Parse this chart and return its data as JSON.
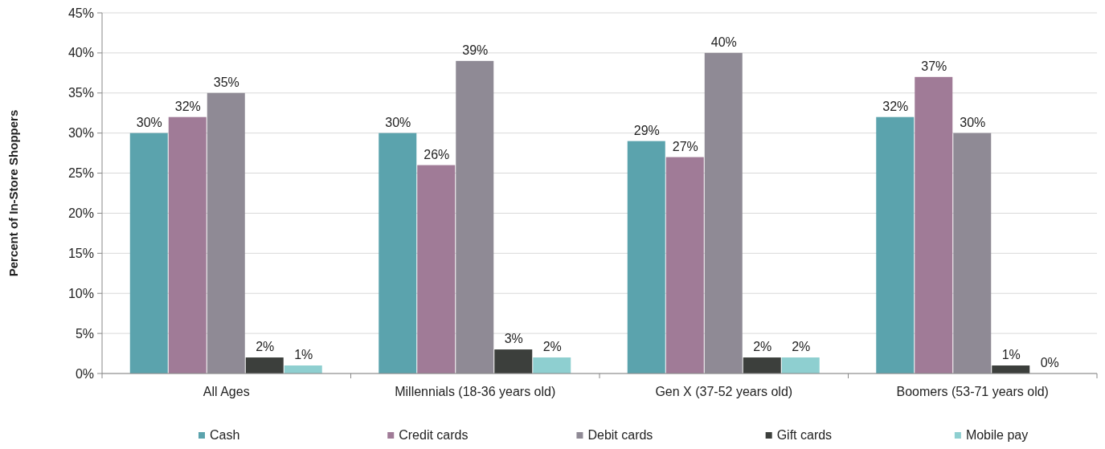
{
  "chart_data": {
    "type": "bar",
    "ylabel": "Percent of In-Store Shoppers",
    "categories": [
      "All Ages",
      "Millennials (18-36 years old)",
      "Gen X (37-52 years old)",
      "Boomers (53-71 years old)"
    ],
    "series": [
      {
        "name": "Cash",
        "color": "#5ba3ad",
        "values": [
          30,
          30,
          29,
          32
        ]
      },
      {
        "name": "Credit cards",
        "color": "#a07b97",
        "values": [
          32,
          26,
          27,
          37
        ]
      },
      {
        "name": "Debit cards",
        "color": "#8f8a95",
        "values": [
          35,
          39,
          40,
          30
        ]
      },
      {
        "name": "Gift cards",
        "color": "#3c3f3c",
        "values": [
          2,
          3,
          2,
          1
        ]
      },
      {
        "name": "Mobile pay",
        "color": "#8ecfd0",
        "values": [
          1,
          2,
          2,
          0
        ]
      }
    ],
    "ylim": [
      0,
      45
    ],
    "yticks": [
      {
        "value": 0,
        "label": "0%"
      },
      {
        "value": 5,
        "label": "5%"
      },
      {
        "value": 10,
        "label": "10%"
      },
      {
        "value": 15,
        "label": "15%"
      },
      {
        "value": 20,
        "label": "20%"
      },
      {
        "value": 25,
        "label": "25%"
      },
      {
        "value": 30,
        "label": "30%"
      },
      {
        "value": 35,
        "label": "35%"
      },
      {
        "value": 40,
        "label": "40%"
      },
      {
        "value": 45,
        "label": "45%"
      }
    ],
    "value_labels": [
      [
        "30%",
        "30%",
        "29%",
        "32%"
      ],
      [
        "32%",
        "26%",
        "27%",
        "37%"
      ],
      [
        "35%",
        "39%",
        "40%",
        "30%"
      ],
      [
        "2%",
        "3%",
        "2%",
        "1%"
      ],
      [
        "1%",
        "2%",
        "2%",
        "0%"
      ]
    ],
    "grid": "y",
    "legend": "bottom"
  }
}
